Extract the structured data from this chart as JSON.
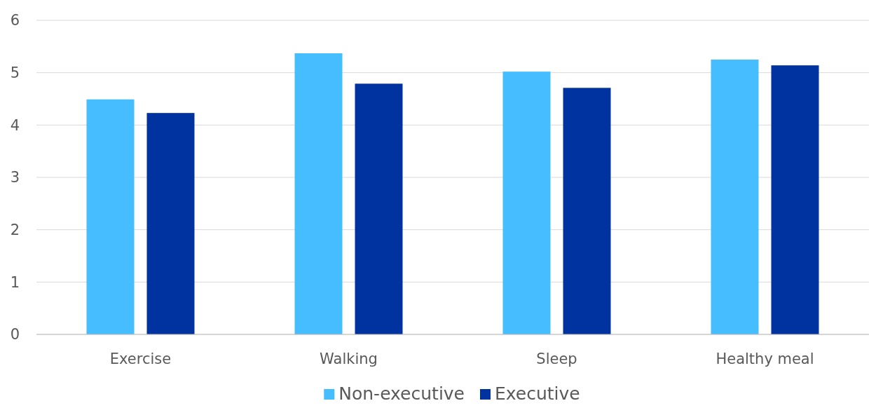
{
  "chart_data": {
    "type": "bar",
    "categories": [
      "Exercise",
      "Walking",
      "Sleep",
      "Healthy meal"
    ],
    "series": [
      {
        "name": "Non-executive",
        "color": "#45bdff",
        "values": [
          4.49,
          5.37,
          5.02,
          5.25
        ]
      },
      {
        "name": "Executive",
        "color": "#0033a0",
        "values": [
          4.23,
          4.79,
          4.71,
          5.14
        ]
      }
    ],
    "ylim": [
      0,
      6
    ],
    "yticks": [
      0,
      1,
      2,
      3,
      4,
      5,
      6
    ],
    "grid": "y",
    "legend": "bottom"
  }
}
